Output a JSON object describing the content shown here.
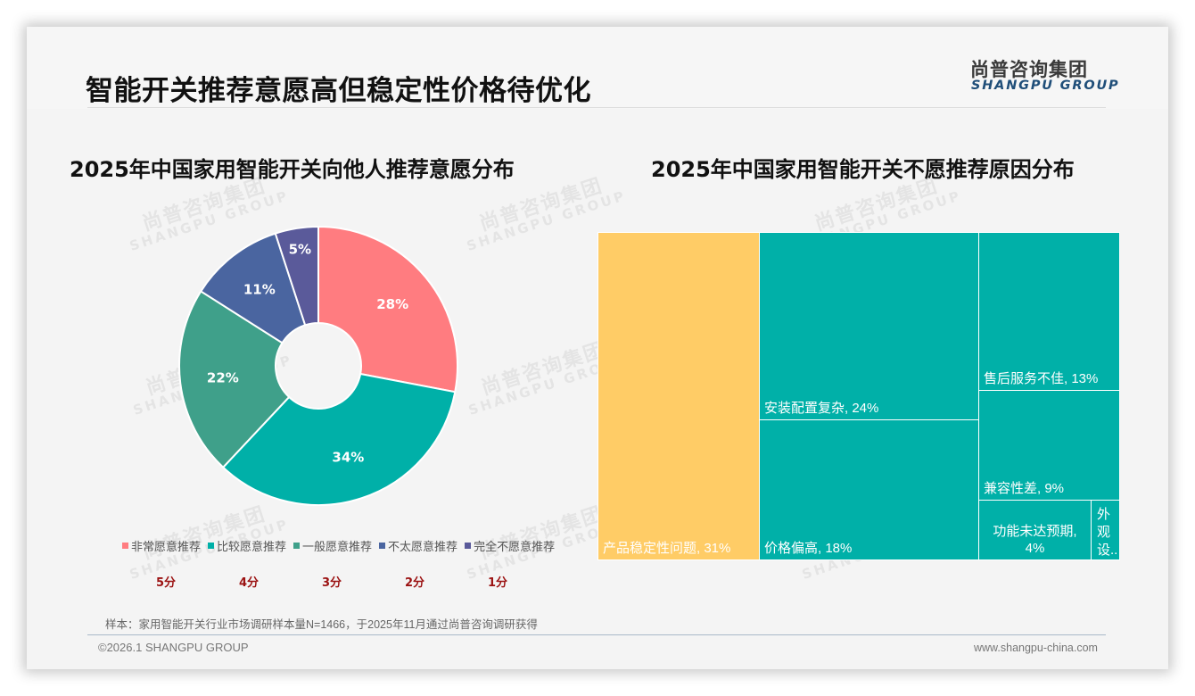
{
  "header": {
    "title": "智能开关推荐意愿高但稳定性价格待优化",
    "logo_cn": "尚普咨询集团",
    "logo_en": "SHANGPU GROUP"
  },
  "watermark": {
    "cn": "尚普咨询集团",
    "en": "SHANGPU GROUP"
  },
  "left_panel": {
    "title": "2025年中国家用智能开关向他人推荐意愿分布",
    "legend": [
      {
        "label": "非常愿意推荐",
        "color": "#ff7c80"
      },
      {
        "label": "比较愿意推荐",
        "color": "#00b0a8"
      },
      {
        "label": "一般愿意推荐",
        "color": "#3fa08a"
      },
      {
        "label": "不太愿意推荐",
        "color": "#4a65a0"
      },
      {
        "label": "完全不愿意推荐",
        "color": "#5a5a9a"
      }
    ],
    "scores": [
      "5分",
      "4分",
      "3分",
      "2分",
      "1分"
    ]
  },
  "right_panel": {
    "title": "2025年中国家用智能开关不愿推荐原因分布"
  },
  "chart_data": [
    {
      "type": "pie",
      "subtype": "donut",
      "title": "2025年中国家用智能开关向他人推荐意愿分布",
      "categories": [
        "非常愿意推荐",
        "比较愿意推荐",
        "一般愿意推荐",
        "不太愿意推荐",
        "完全不愿意推荐"
      ],
      "values": [
        28,
        34,
        22,
        11,
        5
      ],
      "labels": [
        "28%",
        "34%",
        "22%",
        "11%",
        "5%"
      ],
      "scores": [
        "5分",
        "4分",
        "3分",
        "2分",
        "1分"
      ],
      "colors": [
        "#ff7c80",
        "#00b0a8",
        "#3fa08a",
        "#4a65a0",
        "#5a5a9a"
      ],
      "legend_position": "bottom",
      "unit": "%"
    },
    {
      "type": "treemap",
      "title": "2025年中国家用智能开关不愿推荐原因分布",
      "categories": [
        "产品稳定性问题",
        "安装配置复杂",
        "价格偏高",
        "售后服务不佳",
        "兼容性差",
        "功能未达预期",
        "外观设..."
      ],
      "values": [
        31,
        24,
        18,
        13,
        9,
        4,
        null
      ],
      "labels": [
        "产品稳定性问题, 31%",
        "安装配置复杂, 24%",
        "价格偏高, 18%",
        "售后服务不佳, 13%",
        "兼容性差, 9%",
        "功能未达预期, 4%",
        "外观设.."
      ],
      "colors": {
        "highlight": "#ffcc66",
        "default": "#00b0a8"
      },
      "unit": "%"
    }
  ],
  "footer": {
    "note": "样本：家用智能开关行业市场调研样本量N=1466，于2025年11月通过尚普咨询调研获得",
    "copyright": "©2026.1 SHANGPU GROUP",
    "website": "www.shangpu-china.com"
  }
}
